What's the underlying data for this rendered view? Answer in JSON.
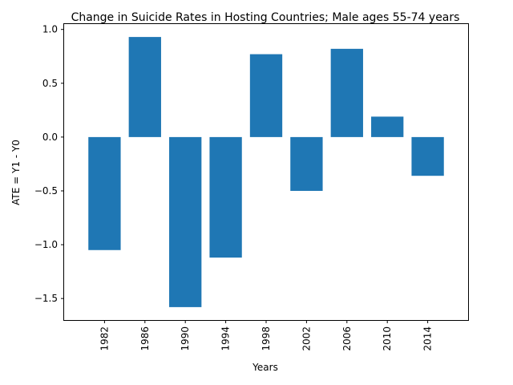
{
  "chart_data": {
    "type": "bar",
    "title": "Change in Suicide Rates in Hosting Countries; Male ages 55-74 years",
    "xlabel": "Years",
    "ylabel": "ATE = Y1 - Y0",
    "categories": [
      "1982",
      "1986",
      "1990",
      "1994",
      "1998",
      "2002",
      "2006",
      "2010",
      "2014"
    ],
    "values": [
      -1.05,
      0.93,
      -1.58,
      -1.12,
      0.77,
      -0.5,
      0.82,
      0.19,
      -0.36
    ],
    "ylim": [
      -1.7,
      1.05
    ],
    "yticks": [
      1.0,
      0.5,
      0.0,
      -0.5,
      -1.0,
      -1.5
    ],
    "ytick_labels": [
      "1.0",
      "0.5",
      "0.0",
      "−0.5",
      "−1.0",
      "−1.5"
    ],
    "bar_color": "#1f77b4",
    "grid": false,
    "legend": "none"
  }
}
